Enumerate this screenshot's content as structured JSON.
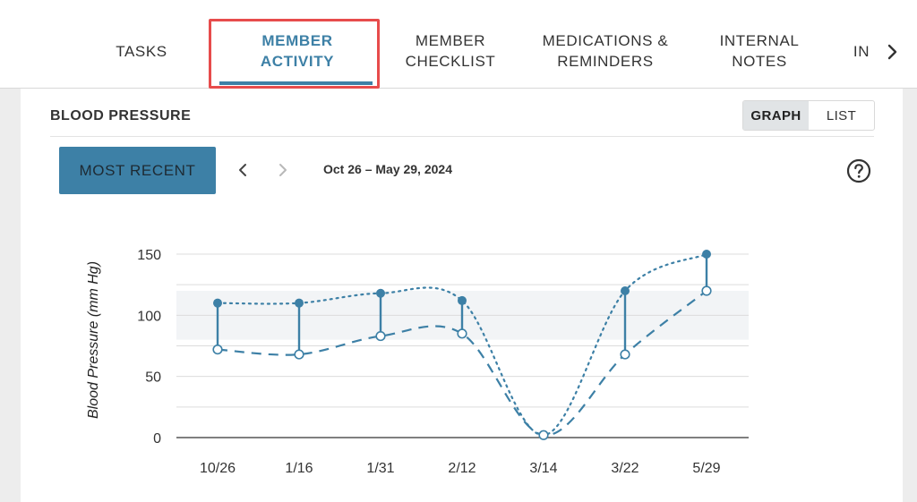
{
  "tabs": [
    {
      "line1": "TASKS",
      "line2": ""
    },
    {
      "line1": "MEMBER",
      "line2": "ACTIVITY"
    },
    {
      "line1": "MEMBER",
      "line2": "CHECKLIST"
    },
    {
      "line1": "MEDICATIONS &",
      "line2": "REMINDERS"
    },
    {
      "line1": "INTERNAL",
      "line2": "NOTES"
    },
    {
      "line1": "IN",
      "line2": ""
    }
  ],
  "active_tab_index": 1,
  "tab_scroll_icon": "chevron-right-icon",
  "card": {
    "title": "BLOOD PRESSURE",
    "view_toggle": {
      "graph": "GRAPH",
      "list": "LIST",
      "selected": "GRAPH"
    },
    "most_recent_label": "MOST RECENT",
    "date_range": "Oct 26 – May 29, 2024",
    "help_icon": "question-circle-icon",
    "prev_icon": "chevron-left-icon",
    "next_icon": "chevron-right-icon"
  },
  "colors": {
    "accent": "#3d80a6",
    "highlight_box": "#e74c4c",
    "normal_band": "#f2f4f6"
  },
  "chart_data": {
    "type": "line",
    "title": "",
    "xlabel": "",
    "ylabel": "Blood Pressure (mm Hg)",
    "categories": [
      "10/26",
      "1/16",
      "1/31",
      "2/12",
      "3/14",
      "3/22",
      "5/29"
    ],
    "ylim": [
      0,
      150
    ],
    "yticks": [
      0,
      50,
      100,
      150
    ],
    "grid": true,
    "normal_range_band": [
      80,
      120
    ],
    "series": [
      {
        "values": [
          110,
          110,
          118,
          112,
          null,
          120,
          150
        ]
      },
      {
        "values": [
          72,
          68,
          83,
          85,
          2,
          68,
          120
        ]
      }
    ]
  }
}
